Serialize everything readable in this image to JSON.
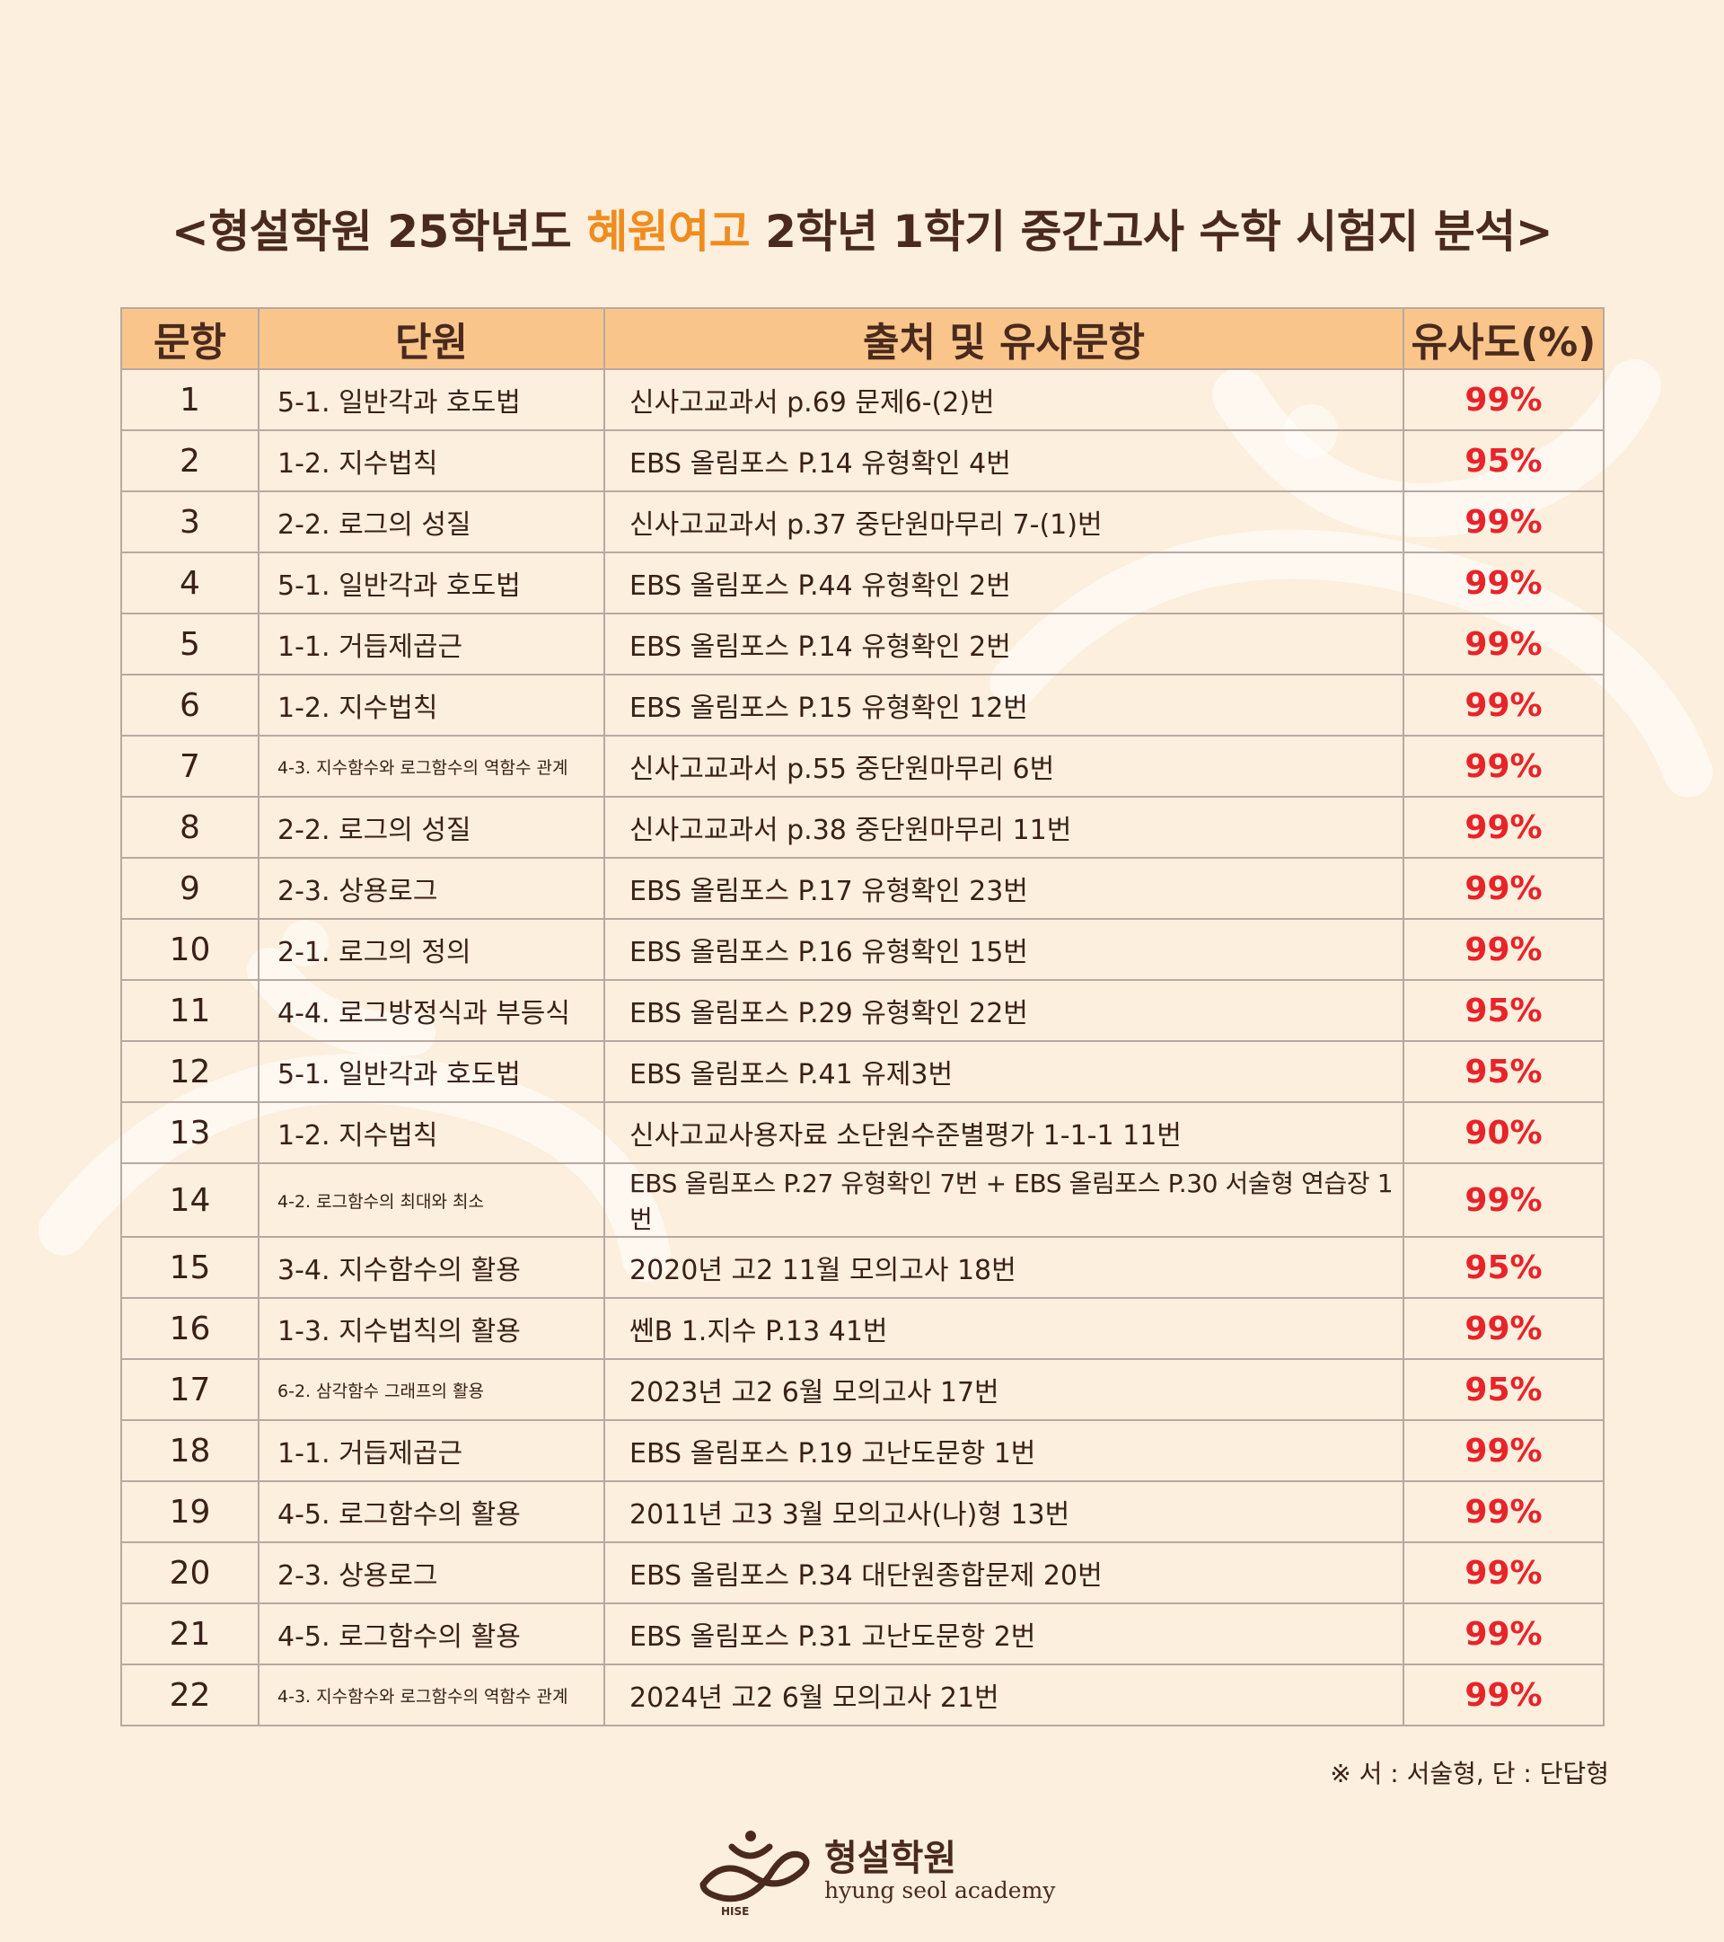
{
  "title": {
    "prefix": "<형설학원 25학년도 ",
    "school": "혜원여고",
    "suffix": " 2학년 1학기 중간고사 수학 시험지 분석>"
  },
  "colors": {
    "accent": "#f08c1e",
    "header_bg": "#f9c58a",
    "similarity": "#e8232a",
    "background": "#fcefdd"
  },
  "table": {
    "headers": [
      "문항",
      "단원",
      "출처 및 유사문항",
      "유사도(%)"
    ],
    "rows": [
      {
        "no": "1",
        "unit": "5-1. 일반각과 호도법",
        "source": "신사고교과서 p.69 문제6-(2)번",
        "similarity": "99%"
      },
      {
        "no": "2",
        "unit": "1-2. 지수법칙",
        "source": "EBS 올림포스 P.14 유형확인 4번",
        "similarity": "95%"
      },
      {
        "no": "3",
        "unit": "2-2. 로그의 성질",
        "source": "신사고교과서 p.37 중단원마무리 7-(1)번",
        "similarity": "99%"
      },
      {
        "no": "4",
        "unit": "5-1. 일반각과 호도법",
        "source": "EBS 올림포스 P.44 유형확인 2번",
        "similarity": "99%"
      },
      {
        "no": "5",
        "unit": "1-1. 거듭제곱근",
        "source": "EBS 올림포스 P.14 유형확인 2번",
        "similarity": "99%"
      },
      {
        "no": "6",
        "unit": "1-2. 지수법칙",
        "source": "EBS 올림포스 P.15 유형확인 12번",
        "similarity": "99%"
      },
      {
        "no": "7",
        "unit": "4-3. 지수함수와 로그함수의 역함수 관계",
        "source": "신사고교과서 p.55 중단원마무리 6번",
        "similarity": "99%"
      },
      {
        "no": "8",
        "unit": "2-2. 로그의 성질",
        "source": "신사고교과서 p.38 중단원마무리 11번",
        "similarity": "99%"
      },
      {
        "no": "9",
        "unit": "2-3. 상용로그",
        "source": "EBS 올림포스 P.17 유형확인 23번",
        "similarity": "99%"
      },
      {
        "no": "10",
        "unit": "2-1. 로그의 정의",
        "source": "EBS 올림포스 P.16 유형확인 15번",
        "similarity": "99%"
      },
      {
        "no": "11",
        "unit": "4-4. 로그방정식과 부등식",
        "source": "EBS 올림포스 P.29 유형확인 22번",
        "similarity": "95%"
      },
      {
        "no": "12",
        "unit": "5-1. 일반각과 호도법",
        "source": "EBS 올림포스 P.41 유제3번",
        "similarity": "95%"
      },
      {
        "no": "13",
        "unit": "1-2. 지수법칙",
        "source": "신사고교사용자료 소단원수준별평가 1-1-1 11번",
        "similarity": "90%"
      },
      {
        "no": "14",
        "unit": "4-2. 로그함수의 최대와 최소",
        "source": "EBS 올림포스 P.27 유형확인 7번 + EBS 올림포스 P.30 서술형 연습장 1번",
        "similarity": "99%"
      },
      {
        "no": "15",
        "unit": "3-4. 지수함수의 활용",
        "source": "2020년 고2 11월 모의고사 18번",
        "similarity": "95%"
      },
      {
        "no": "16",
        "unit": "1-3. 지수법칙의 활용",
        "source": "쎈B 1.지수 P.13 41번",
        "similarity": "99%"
      },
      {
        "no": "17",
        "unit": "6-2. 삼각함수 그래프의 활용",
        "source": "2023년 고2 6월 모의고사 17번",
        "similarity": "95%"
      },
      {
        "no": "18",
        "unit": "1-1. 거듭제곱근",
        "source": "EBS 올림포스 P.19 고난도문항 1번",
        "similarity": "99%"
      },
      {
        "no": "19",
        "unit": "4-5. 로그함수의 활용",
        "source": "2011년 고3 3월 모의고사(나)형 13번",
        "similarity": "99%"
      },
      {
        "no": "20",
        "unit": "2-3. 상용로그",
        "source": "EBS 올림포스 P.34 대단원종합문제 20번",
        "similarity": "99%"
      },
      {
        "no": "21",
        "unit": "4-5. 로그함수의 활용",
        "source": "EBS 올림포스 P.31 고난도문항 2번",
        "similarity": "99%"
      },
      {
        "no": "22",
        "unit": "4-3. 지수함수와 로그함수의 역함수 관계",
        "source": "2024년 고2 6월 모의고사 21번",
        "similarity": "99%"
      }
    ]
  },
  "note": "※ 서 : 서술형, 단 : 단답형",
  "logo": {
    "name": "형설학원",
    "subtitle": "hyung seol academy",
    "mark_text": "HISE"
  }
}
